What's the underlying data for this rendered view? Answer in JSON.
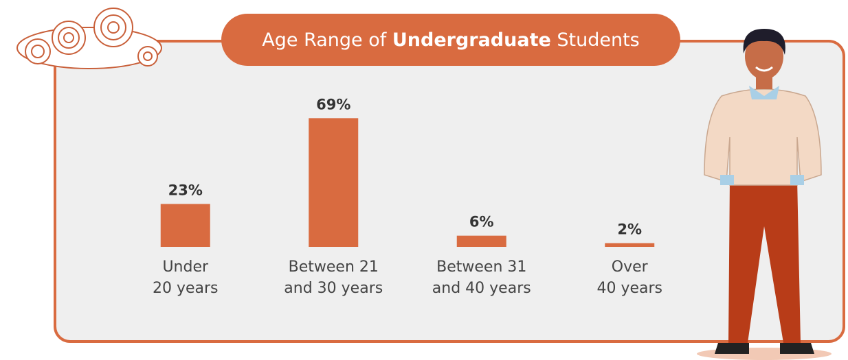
{
  "chart_data": {
    "type": "bar",
    "title": {
      "prefix": "Age Range of ",
      "emphasis": "Undergraduate",
      "suffix": " Students"
    },
    "categories": [
      [
        "Under",
        "20 years"
      ],
      [
        "Between 21",
        "and 30 years"
      ],
      [
        "Between 31",
        "and 40 years"
      ],
      [
        "Over",
        "40 years"
      ]
    ],
    "values": [
      23,
      69,
      6,
      2
    ],
    "value_labels": [
      "23%",
      "69%",
      "6%",
      "2%"
    ],
    "color": "#d96b40"
  }
}
